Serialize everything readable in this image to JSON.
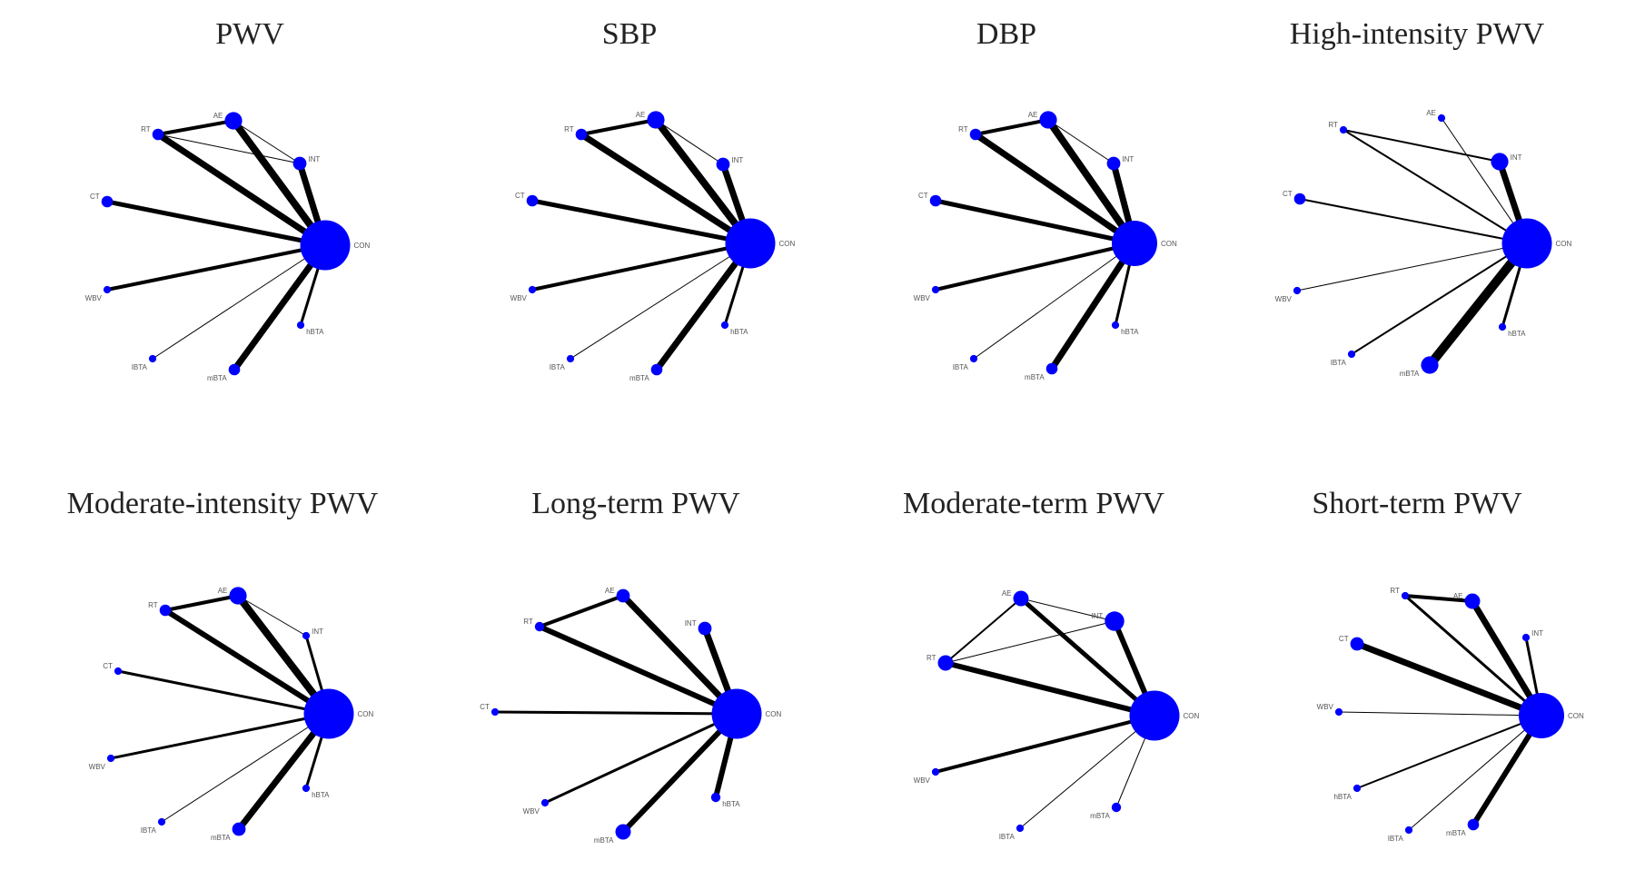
{
  "colors": {
    "node": "#0000ff",
    "edge": "#000000",
    "title": "#222222"
  },
  "panels": [
    {
      "title": "PWV",
      "nodes": [
        {
          "id": "AE",
          "label": "AE",
          "size": 6
        },
        {
          "id": "RT",
          "label": "RT",
          "size": 3
        },
        {
          "id": "INT",
          "label": "INT",
          "size": 4
        },
        {
          "id": "CT",
          "label": "CT",
          "size": 3
        },
        {
          "id": "WBV",
          "label": "WBV",
          "size": 1
        },
        {
          "id": "IBTA",
          "label": "IBTA",
          "size": 1
        },
        {
          "id": "mBTA",
          "label": "mBTA",
          "size": 3
        },
        {
          "id": "hBTA",
          "label": "hBTA",
          "size": 1
        },
        {
          "id": "CON",
          "label": "CON",
          "size": 22
        }
      ],
      "edges": [
        {
          "a": "AE",
          "b": "CON",
          "w": 8
        },
        {
          "a": "RT",
          "b": "CON",
          "w": 7
        },
        {
          "a": "INT",
          "b": "CON",
          "w": 7
        },
        {
          "a": "CT",
          "b": "CON",
          "w": 5
        },
        {
          "a": "WBV",
          "b": "CON",
          "w": 4
        },
        {
          "a": "IBTA",
          "b": "CON",
          "w": 1
        },
        {
          "a": "mBTA",
          "b": "CON",
          "w": 7
        },
        {
          "a": "hBTA",
          "b": "CON",
          "w": 3
        },
        {
          "a": "RT",
          "b": "AE",
          "w": 4
        },
        {
          "a": "RT",
          "b": "INT",
          "w": 1
        },
        {
          "a": "AE",
          "b": "INT",
          "w": 1
        }
      ]
    },
    {
      "title": "SBP",
      "nodes": [
        {
          "id": "AE",
          "label": "AE",
          "size": 6
        },
        {
          "id": "RT",
          "label": "RT",
          "size": 3
        },
        {
          "id": "INT",
          "label": "INT",
          "size": 4
        },
        {
          "id": "CT",
          "label": "CT",
          "size": 3
        },
        {
          "id": "WBV",
          "label": "WBV",
          "size": 1
        },
        {
          "id": "IBTA",
          "label": "IBTA",
          "size": 1
        },
        {
          "id": "mBTA",
          "label": "mBTA",
          "size": 3
        },
        {
          "id": "hBTA",
          "label": "hBTA",
          "size": 1
        },
        {
          "id": "CON",
          "label": "CON",
          "size": 22
        }
      ],
      "edges": [
        {
          "a": "AE",
          "b": "CON",
          "w": 8
        },
        {
          "a": "RT",
          "b": "CON",
          "w": 7
        },
        {
          "a": "INT",
          "b": "CON",
          "w": 7
        },
        {
          "a": "CT",
          "b": "CON",
          "w": 5
        },
        {
          "a": "WBV",
          "b": "CON",
          "w": 4
        },
        {
          "a": "IBTA",
          "b": "CON",
          "w": 1
        },
        {
          "a": "mBTA",
          "b": "CON",
          "w": 7
        },
        {
          "a": "hBTA",
          "b": "CON",
          "w": 3
        },
        {
          "a": "RT",
          "b": "AE",
          "w": 4
        },
        {
          "a": "AE",
          "b": "INT",
          "w": 1
        }
      ]
    },
    {
      "title": "DBP",
      "nodes": [
        {
          "id": "AE",
          "label": "AE",
          "size": 6
        },
        {
          "id": "RT",
          "label": "RT",
          "size": 3
        },
        {
          "id": "INT",
          "label": "INT",
          "size": 4
        },
        {
          "id": "CT",
          "label": "CT",
          "size": 3
        },
        {
          "id": "WBV",
          "label": "WBV",
          "size": 1
        },
        {
          "id": "IBTA",
          "label": "IBTA",
          "size": 1
        },
        {
          "id": "mBTA",
          "label": "mBTA",
          "size": 3
        },
        {
          "id": "hBTA",
          "label": "hBTA",
          "size": 1
        },
        {
          "id": "CON",
          "label": "CON",
          "size": 20
        }
      ],
      "edges": [
        {
          "a": "AE",
          "b": "CON",
          "w": 8
        },
        {
          "a": "RT",
          "b": "CON",
          "w": 7
        },
        {
          "a": "INT",
          "b": "CON",
          "w": 7
        },
        {
          "a": "CT",
          "b": "CON",
          "w": 5
        },
        {
          "a": "WBV",
          "b": "CON",
          "w": 4
        },
        {
          "a": "IBTA",
          "b": "CON",
          "w": 1
        },
        {
          "a": "mBTA",
          "b": "CON",
          "w": 7
        },
        {
          "a": "hBTA",
          "b": "CON",
          "w": 3
        },
        {
          "a": "RT",
          "b": "AE",
          "w": 4
        },
        {
          "a": "AE",
          "b": "INT",
          "w": 1
        }
      ]
    },
    {
      "title": "High-intensity PWV",
      "nodes": [
        {
          "id": "AE",
          "label": "AE",
          "size": 1
        },
        {
          "id": "RT",
          "label": "RT",
          "size": 1
        },
        {
          "id": "INT",
          "label": "INT",
          "size": 6
        },
        {
          "id": "CT",
          "label": "CT",
          "size": 3
        },
        {
          "id": "WBV",
          "label": "WBV",
          "size": 1
        },
        {
          "id": "IBTA",
          "label": "IBTA",
          "size": 1
        },
        {
          "id": "mBTA",
          "label": "mBTA",
          "size": 6
        },
        {
          "id": "hBTA",
          "label": "hBTA",
          "size": 1
        },
        {
          "id": "CON",
          "label": "CON",
          "size": 22
        }
      ],
      "edges": [
        {
          "a": "AE",
          "b": "CON",
          "w": 1
        },
        {
          "a": "RT",
          "b": "CON",
          "w": 2
        },
        {
          "a": "INT",
          "b": "CON",
          "w": 7
        },
        {
          "a": "CT",
          "b": "CON",
          "w": 2
        },
        {
          "a": "WBV",
          "b": "CON",
          "w": 1
        },
        {
          "a": "IBTA",
          "b": "CON",
          "w": 2
        },
        {
          "a": "mBTA",
          "b": "CON",
          "w": 10
        },
        {
          "a": "hBTA",
          "b": "CON",
          "w": 3
        },
        {
          "a": "RT",
          "b": "INT",
          "w": 2
        }
      ]
    },
    {
      "title": "Moderate-intensity PWV",
      "nodes": [
        {
          "id": "AE",
          "label": "AE",
          "size": 6
        },
        {
          "id": "RT",
          "label": "RT",
          "size": 3
        },
        {
          "id": "INT",
          "label": "INT",
          "size": 1
        },
        {
          "id": "CT",
          "label": "CT",
          "size": 1
        },
        {
          "id": "WBV",
          "label": "WBV",
          "size": 1
        },
        {
          "id": "IBTA",
          "label": "IBTA",
          "size": 1
        },
        {
          "id": "mBTA",
          "label": "mBTA",
          "size": 4
        },
        {
          "id": "hBTA",
          "label": "hBTA",
          "size": 1
        },
        {
          "id": "CON",
          "label": "CON",
          "size": 22
        }
      ],
      "edges": [
        {
          "a": "AE",
          "b": "CON",
          "w": 8
        },
        {
          "a": "RT",
          "b": "CON",
          "w": 6
        },
        {
          "a": "INT",
          "b": "CON",
          "w": 3
        },
        {
          "a": "CT",
          "b": "CON",
          "w": 3
        },
        {
          "a": "WBV",
          "b": "CON",
          "w": 3
        },
        {
          "a": "IBTA",
          "b": "CON",
          "w": 1
        },
        {
          "a": "mBTA",
          "b": "CON",
          "w": 7
        },
        {
          "a": "hBTA",
          "b": "CON",
          "w": 3
        },
        {
          "a": "RT",
          "b": "AE",
          "w": 4
        },
        {
          "a": "AE",
          "b": "INT",
          "w": 1
        }
      ]
    },
    {
      "title": "Long-term PWV",
      "nodes": [
        {
          "id": "AE",
          "label": "AE",
          "size": 4
        },
        {
          "id": "RT",
          "label": "RT",
          "size": 2
        },
        {
          "id": "INT",
          "label": "INT",
          "size": 4
        },
        {
          "id": "CT",
          "label": "CT",
          "size": 1
        },
        {
          "id": "WBV",
          "label": "WBV",
          "size": 1
        },
        {
          "id": "mBTA",
          "label": "mBTA",
          "size": 5
        },
        {
          "id": "hBTA",
          "label": "hBTA",
          "size": 2
        },
        {
          "id": "CON",
          "label": "CON",
          "size": 22
        }
      ],
      "edges": [
        {
          "a": "AE",
          "b": "CON",
          "w": 7
        },
        {
          "a": "RT",
          "b": "CON",
          "w": 6
        },
        {
          "a": "INT",
          "b": "CON",
          "w": 7
        },
        {
          "a": "CT",
          "b": "CON",
          "w": 3
        },
        {
          "a": "WBV",
          "b": "CON",
          "w": 3
        },
        {
          "a": "mBTA",
          "b": "CON",
          "w": 6
        },
        {
          "a": "hBTA",
          "b": "CON",
          "w": 6
        },
        {
          "a": "RT",
          "b": "AE",
          "w": 4
        }
      ]
    },
    {
      "title": "Moderate-term PWV",
      "nodes": [
        {
          "id": "AE",
          "label": "AE",
          "size": 5
        },
        {
          "id": "INT",
          "label": "INT",
          "size": 7
        },
        {
          "id": "RT",
          "label": "RT",
          "size": 5
        },
        {
          "id": "WBV",
          "label": "WBV",
          "size": 1
        },
        {
          "id": "IBTA",
          "label": "IBTA",
          "size": 1
        },
        {
          "id": "mBTA",
          "label": "mBTA",
          "size": 2
        },
        {
          "id": "CON",
          "label": "CON",
          "size": 22
        }
      ],
      "edges": [
        {
          "a": "AE",
          "b": "CON",
          "w": 5
        },
        {
          "a": "INT",
          "b": "CON",
          "w": 6
        },
        {
          "a": "RT",
          "b": "CON",
          "w": 6
        },
        {
          "a": "WBV",
          "b": "CON",
          "w": 4
        },
        {
          "a": "IBTA",
          "b": "CON",
          "w": 1
        },
        {
          "a": "mBTA",
          "b": "CON",
          "w": 1
        },
        {
          "a": "RT",
          "b": "AE",
          "w": 2
        },
        {
          "a": "AE",
          "b": "INT",
          "w": 1
        },
        {
          "a": "RT",
          "b": "INT",
          "w": 1
        }
      ]
    },
    {
      "title": "Short-term PWV",
      "nodes": [
        {
          "id": "RT",
          "label": "RT",
          "size": 1
        },
        {
          "id": "AE",
          "label": "AE",
          "size": 5
        },
        {
          "id": "INT",
          "label": "INT",
          "size": 1
        },
        {
          "id": "CT",
          "label": "CT",
          "size": 4
        },
        {
          "id": "WBV",
          "label": "WBV",
          "size": 1
        },
        {
          "id": "hBTA",
          "label": "hBTA",
          "size": 1
        },
        {
          "id": "IBTA",
          "label": "IBTA",
          "size": 1
        },
        {
          "id": "mBTA",
          "label": "mBTA",
          "size": 3
        },
        {
          "id": "CON",
          "label": "CON",
          "size": 20
        }
      ],
      "edges": [
        {
          "a": "AE",
          "b": "CON",
          "w": 7
        },
        {
          "a": "RT",
          "b": "CON",
          "w": 3
        },
        {
          "a": "INT",
          "b": "CON",
          "w": 3
        },
        {
          "a": "CT",
          "b": "CON",
          "w": 7
        },
        {
          "a": "WBV",
          "b": "CON",
          "w": 1
        },
        {
          "a": "hBTA",
          "b": "CON",
          "w": 1
        },
        {
          "a": "IBTA",
          "b": "CON",
          "w": 1
        },
        {
          "a": "mBTA",
          "b": "CON",
          "w": 6
        },
        {
          "a": "hBTA",
          "b": "CON",
          "w": 2
        },
        {
          "a": "RT",
          "b": "AE",
          "w": 4
        }
      ]
    }
  ]
}
